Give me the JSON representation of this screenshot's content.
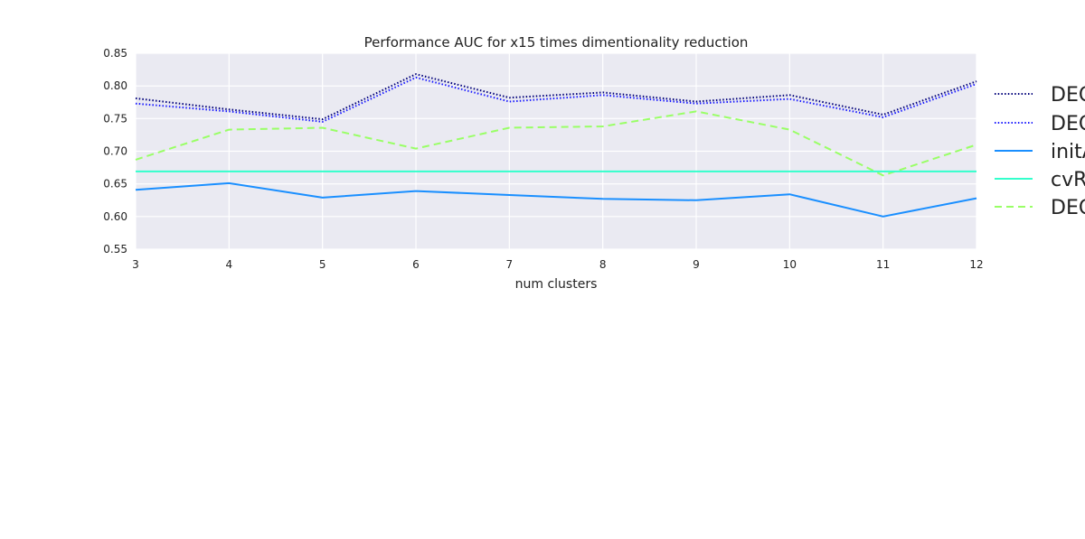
{
  "chart_data": {
    "type": "line",
    "title": "Performance AUC for x15 times dimentionality reduction",
    "xlabel": "num clusters",
    "ylabel": "",
    "xlim": [
      3,
      12
    ],
    "ylim": [
      0.55,
      0.85
    ],
    "x": [
      3,
      4,
      5,
      6,
      7,
      8,
      9,
      10,
      11,
      12
    ],
    "x_ticks": [
      "3",
      "4",
      "5",
      "6",
      "7",
      "8",
      "9",
      "10",
      "11",
      "12"
    ],
    "y_ticks": [
      "0.55",
      "0.60",
      "0.65",
      "0.70",
      "0.75",
      "0.80",
      "0.85"
    ],
    "y_tick_values": [
      0.55,
      0.6,
      0.65,
      0.7,
      0.75,
      0.8,
      0.85
    ],
    "grid": true,
    "legend_position": "right",
    "series": [
      {
        "name": "DEC",
        "color": "#00007a",
        "style": "dotted",
        "values": [
          0.781,
          0.764,
          0.749,
          0.818,
          0.782,
          0.79,
          0.776,
          0.786,
          0.756,
          0.807
        ]
      },
      {
        "name": "DEC",
        "color": "#1a1aff",
        "style": "dotted",
        "values": [
          0.773,
          0.761,
          0.745,
          0.813,
          0.776,
          0.786,
          0.773,
          0.78,
          0.752,
          0.803
        ]
      },
      {
        "name": "initA",
        "color": "#1a8fff",
        "style": "solid",
        "values": [
          0.641,
          0.651,
          0.629,
          0.639,
          0.633,
          0.627,
          0.625,
          0.634,
          0.6,
          0.628
        ]
      },
      {
        "name": "cvR",
        "color": "#33ffcc",
        "style": "solid",
        "values": [
          0.669,
          0.669,
          0.669,
          0.669,
          0.669,
          0.669,
          0.669,
          0.669,
          0.669,
          0.669
        ]
      },
      {
        "name": "DEC",
        "color": "#99ff66",
        "style": "dashed",
        "values": [
          0.687,
          0.733,
          0.736,
          0.704,
          0.736,
          0.738,
          0.761,
          0.733,
          0.663,
          0.71
        ]
      }
    ]
  }
}
